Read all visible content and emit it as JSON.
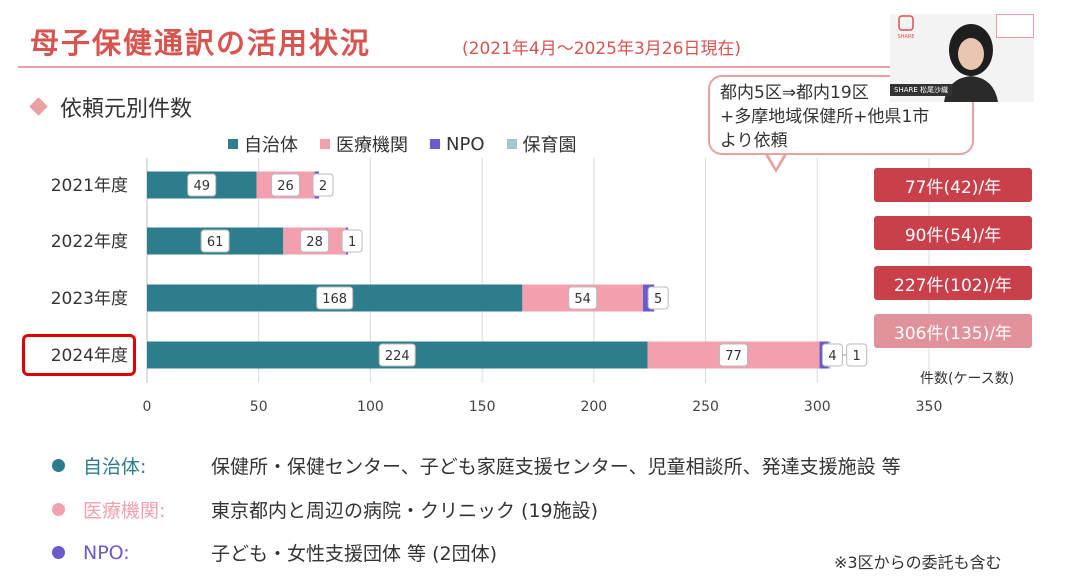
{
  "header": {
    "title": "母子保健通訳の活用状況",
    "period": "(2021年4月～2025年3月26日現在)",
    "subtitle": "依頼元別件数"
  },
  "callout": {
    "text": "都内5区⇒都内19区\n+多摩地域保健所+他県1市\nより依頼"
  },
  "totals": [
    {
      "label": "77件(42)/年",
      "color": "#c9404a"
    },
    {
      "label": "90件(54)/年",
      "color": "#c9404a"
    },
    {
      "label": "227件(102)/年",
      "color": "#c9404a"
    },
    {
      "label": "306件(135)/年",
      "color": "#e0919a"
    }
  ],
  "unit_note": "件数(ケース数)",
  "notes": [
    {
      "term": "自治体:",
      "desc": "保健所・保健センター、子ども家庭支援センター、児童相談所、発達支援施設 等",
      "color": "#2e7d8c"
    },
    {
      "term": "医療機関:",
      "desc": "東京都内と周辺の病院・クリニック (19施設)",
      "color": "#f2a0ae"
    },
    {
      "term": "NPO:",
      "desc": "子ども・女性支援団体 等 (2団体)",
      "color": "#6a5acd"
    }
  ],
  "footnote": "※3区からの委託も含む",
  "video": {
    "name": "SHARE 松尾沙織",
    "logo": "SHARE"
  },
  "chart_data": {
    "type": "bar",
    "orientation": "horizontal",
    "stacked": true,
    "categories": [
      "2021年度",
      "2022年度",
      "2023年度",
      "2024年度"
    ],
    "series": [
      {
        "name": "自治体",
        "values": [
          49,
          61,
          168,
          224
        ],
        "color": "#2e7d8c"
      },
      {
        "name": "医療機関",
        "values": [
          26,
          28,
          54,
          77
        ],
        "color": "#f2a0ae"
      },
      {
        "name": "NPO",
        "values": [
          2,
          1,
          5,
          4
        ],
        "color": "#6a5acd"
      },
      {
        "name": "保育園",
        "values": [
          0,
          0,
          0,
          1
        ],
        "color": "#a9c4cf"
      }
    ],
    "xlim": [
      0,
      350
    ],
    "xticks": [
      0,
      50,
      100,
      150,
      200,
      250,
      300,
      350
    ],
    "grid": true,
    "legend": "top",
    "highlight_category": "2024年度"
  }
}
